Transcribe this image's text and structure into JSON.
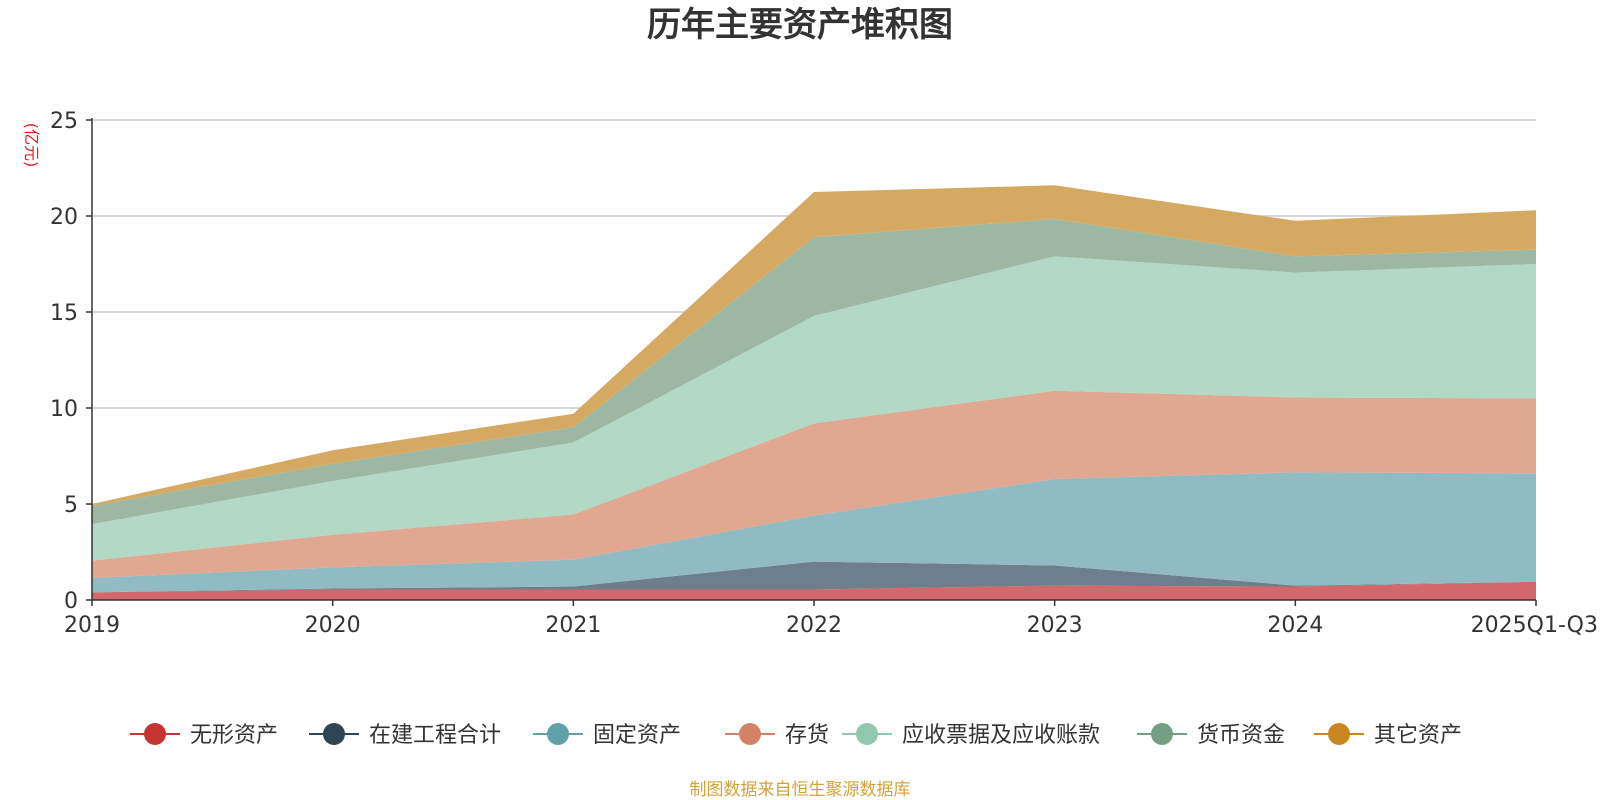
{
  "chart_data": {
    "type": "area",
    "stacked": true,
    "title": "历年主要资产堆积图",
    "unit_label": "(亿元)",
    "categories": [
      "2019",
      "2020",
      "2021",
      "2022",
      "2023",
      "2024",
      "2025Q1-Q3"
    ],
    "ylim": [
      0,
      25
    ],
    "yticks": [
      0,
      5,
      10,
      15,
      20,
      25
    ],
    "grid": true,
    "legend_position": "bottom",
    "series": [
      {
        "name": "无形资产",
        "color": "#d2686a",
        "legend_color": "#c23531",
        "values": [
          0.4,
          0.55,
          0.55,
          0.55,
          0.75,
          0.7,
          0.95
        ]
      },
      {
        "name": "在建工程合计",
        "color": "#6e7e8a",
        "legend_color": "#2f4554",
        "values": [
          0.0,
          0.05,
          0.15,
          1.45,
          1.05,
          0.05,
          0.0
        ]
      },
      {
        "name": "固定资产",
        "color": "#91bbc2",
        "legend_color": "#61a0a8",
        "values": [
          0.75,
          1.1,
          1.4,
          2.4,
          4.5,
          5.9,
          5.65
        ]
      },
      {
        "name": "存货",
        "color": "#e0a791",
        "legend_color": "#d48265",
        "values": [
          0.9,
          1.7,
          2.35,
          4.8,
          4.6,
          3.9,
          3.9
        ]
      },
      {
        "name": "应收票据及应收账款",
        "color": "#b2d8c6",
        "legend_color": "#91c7ae",
        "values": [
          1.9,
          2.8,
          3.75,
          5.6,
          7.0,
          6.5,
          7.0
        ]
      },
      {
        "name": "货币资金",
        "color": "#9cb8a2",
        "legend_color": "#749f83",
        "values": [
          0.95,
          0.9,
          0.8,
          4.1,
          1.95,
          0.85,
          0.75
        ]
      },
      {
        "name": "其它资产",
        "color": "#d6a962",
        "legend_color": "#ca8622",
        "values": [
          0.1,
          0.7,
          0.7,
          2.35,
          1.75,
          1.85,
          2.05
        ]
      }
    ]
  },
  "source_note": "制图数据来自恒生聚源数据库"
}
